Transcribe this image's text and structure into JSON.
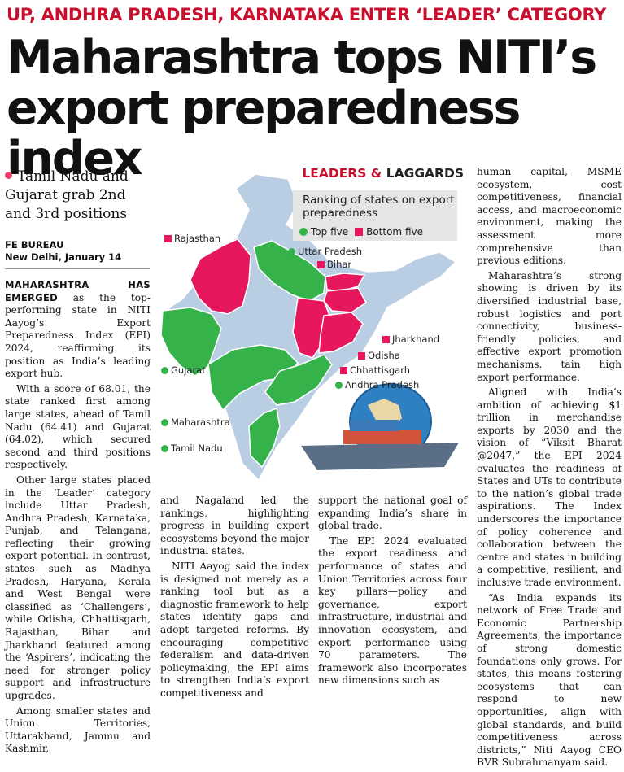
{
  "kicker": "UP, ANDHRA PRADESH, KARNATAKA ENTER ‘LEADER’ CATEGORY",
  "headline": "Maharashtra tops NITI’s export preparedness index",
  "subhead": "Tamil Nadu and Gujarat grab 2nd and 3rd positions",
  "byline": {
    "author": "FE BUREAU",
    "dateline": "New Delhi, January 14"
  },
  "graphic": {
    "title_part1": "LEADERS & ",
    "title_part2": "LAGGARDS",
    "legend_title": "Ranking of states on export preparedness",
    "legend_top": "Top five",
    "legend_bottom": "Bottom five",
    "labels": {
      "rajasthan": "Rajasthan",
      "uttar_pradesh": "Uttar Pradesh",
      "bihar": "Bihar",
      "jharkhand": "Jharkhand",
      "odisha": "Odisha",
      "chhattisgarh": "Chhattisgarh",
      "andhra_pradesh": "Andhra Pradesh",
      "gujarat": "Gujarat",
      "maharashtra": "Maharashtra",
      "tamil_nadu": "Tamil Nadu"
    },
    "colors": {
      "top": "#35b24a",
      "bottom": "#e6175c",
      "other": "#b9cde3"
    }
  },
  "article": {
    "lead_caps": "MAHARASHTRA HAS EMERGED",
    "p1_rest": " as the top-performing state in NITI Aayog’s Export Preparedness Index (EPI) 2024, reaffirming its position as India’s leading export hub.",
    "p2": "With a score of 68.01, the state ranked first among large states, ahead of Tamil Nadu (64.41) and Gujarat (64.02), which secured second and third positions respectively.",
    "p3": "Other large states placed in the ‘Leader’ category include Uttar Pradesh, Andhra Pradesh, Karnataka, Punjab, and Telangana, reflecting their growing export potential. In contrast, states such as Madhya Pradesh, Haryana, Kerala and West Bengal were classified as ‘Challengers’, while Odisha, Chhattisgarh, Rajasthan, Bihar and Jharkhand featured among the ‘Aspirers’, indicating the need for stronger policy support and infrastructure upgrades.",
    "p4": "Among smaller states and Union Territories, Uttarakhand, Jammu and Kashmir,",
    "c2p1": "and Nagaland led the rankings, highlighting progress in building export ecosystems beyond the major industrial states.",
    "c2p2": "NITI Aayog said the index is designed not merely as a ranking tool but as a diagnostic framework to help states identify gaps and adopt targeted reforms. By encouraging competitive federalism and data-driven policymaking, the EPI aims to strengthen India’s export competitiveness and",
    "c3p1": "support the national goal of expanding India’s share in global trade.",
    "c3p2": "The EPI 2024 evaluated the export readiness and performance of states and Union Territories across four key pillars—policy and governance, export infrastructure, industrial and innovation ecosystem, and export performance—using 70 parameters. The framework also incorporates new dimensions such as",
    "c4p1": "human capital, MSME ecosystem, cost competitiveness, financial access, and macroeconomic environment, making the assessment more comprehensive than previous editions.",
    "c4p2": "Maharashtra’s strong showing is driven by its diversified industrial base, robust logistics and port connectivity, business-friendly policies, and effective export promotion mechanisms. tain high export performance.",
    "c4p3": "Aligned with India’s ambition of achieving $1 trillion in merchandise exports by 2030 and the vision of “Viksit Bharat @2047,” the EPI 2024 evaluates the readiness of States and UTs to contribute to the nation’s global trade aspirations. The Index underscores the importance of policy coherence and collaboration between the centre and states in building a competitive, resilient, and inclusive trade environment.",
    "c4p4": "“As India expands its network of Free Trade and Economic Partnership Agreements, the importance of strong domestic foundations only grows. For states, this means fostering ecosystems that can respond to new opportunities, align with global standards, and build competitiveness across districts,” Niti Aayog CEO BVR Subrahmanyam said."
  }
}
